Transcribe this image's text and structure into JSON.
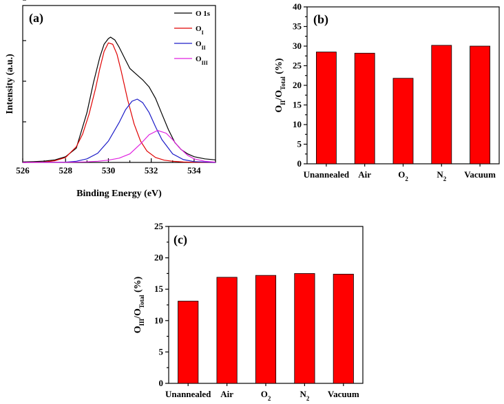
{
  "chart_data": [
    {
      "type": "line",
      "panel_label": "(a)",
      "xlabel": "Binding Energy (eV)",
      "ylabel": "Intensity (a.u.)",
      "xlim": [
        526,
        535
      ],
      "x_ticks": [
        526,
        528,
        530,
        532,
        534
      ],
      "y_ticks_labeled": false,
      "legend_placement": "top-right",
      "series": [
        {
          "name": "O 1s",
          "color": "#000000",
          "x": [
            526.0,
            526.5,
            527.0,
            527.5,
            528.0,
            528.5,
            529.0,
            529.3,
            529.6,
            529.8,
            530.0,
            530.1,
            530.3,
            530.5,
            530.8,
            531.0,
            531.3,
            531.6,
            531.9,
            532.2,
            532.5,
            532.8,
            533.1,
            533.4,
            533.7,
            534.0,
            534.5,
            535.0
          ],
          "y": [
            0.4,
            0.6,
            0.9,
            1.8,
            4.0,
            10.0,
            35.0,
            56.0,
            74.0,
            83.0,
            87.0,
            88.0,
            86.0,
            81.0,
            72.0,
            66.0,
            62.0,
            58.0,
            53.0,
            45.0,
            34.0,
            23.0,
            14.0,
            9.0,
            6.0,
            4.0,
            2.5,
            1.8
          ]
        },
        {
          "name": "O_I",
          "label_main": "O",
          "label_sub": "I",
          "color": "#e00000",
          "x": [
            526.0,
            527.0,
            527.5,
            528.0,
            528.5,
            528.8,
            529.1,
            529.4,
            529.6,
            529.8,
            530.0,
            530.2,
            530.4,
            530.6,
            530.9,
            531.2,
            531.5,
            531.8,
            532.2,
            532.6,
            533.0,
            533.5,
            534.0,
            535.0
          ],
          "y": [
            0.0,
            0.3,
            1.2,
            3.5,
            11.0,
            20.0,
            34.0,
            52.0,
            66.0,
            78.0,
            84.0,
            83.0,
            76.0,
            64.0,
            44.0,
            27.0,
            15.0,
            8.0,
            3.5,
            1.6,
            0.8,
            0.3,
            0.1,
            0.0
          ]
        },
        {
          "name": "O_II",
          "label_main": "O",
          "label_sub": "II",
          "color": "#1c1cc8",
          "x": [
            526.0,
            528.0,
            528.5,
            529.0,
            529.5,
            530.0,
            530.5,
            530.8,
            531.1,
            531.35,
            531.6,
            531.9,
            532.2,
            532.5,
            533.0,
            533.5,
            534.0,
            535.0
          ],
          "y": [
            0.0,
            0.2,
            0.8,
            2.5,
            6.5,
            15.0,
            28.0,
            37.0,
            43.0,
            44.5,
            42.0,
            35.0,
            25.0,
            16.0,
            6.0,
            2.0,
            0.6,
            0.0
          ]
        },
        {
          "name": "O_III",
          "label_main": "O",
          "label_sub": "III",
          "color": "#e020e0",
          "x": [
            526.0,
            528.0,
            529.0,
            529.5,
            530.0,
            530.5,
            531.0,
            531.5,
            531.9,
            532.3,
            532.7,
            533.0,
            533.3,
            533.7,
            534.0,
            534.5,
            535.0
          ],
          "y": [
            0.0,
            0.1,
            0.4,
            0.8,
            1.6,
            3.0,
            6.0,
            13.0,
            19.5,
            22.5,
            20.5,
            16.0,
            10.5,
            5.0,
            2.5,
            0.8,
            0.2
          ]
        }
      ]
    },
    {
      "type": "bar",
      "panel_label": "(b)",
      "ylabel_main": "O",
      "ylabel_sub1": "II",
      "ylabel_mid": "/O",
      "ylabel_sub2": "Total",
      "ylabel_unit": " (%)",
      "categories": [
        "Unannealed",
        "Air",
        "O",
        "N",
        "Vacuum"
      ],
      "category_subs": [
        "",
        "",
        "2",
        "2",
        ""
      ],
      "values": [
        28.5,
        28.2,
        21.8,
        30.2,
        30.0
      ],
      "ylim": [
        0,
        40
      ],
      "y_ticks": [
        0,
        5,
        10,
        15,
        20,
        25,
        30,
        35,
        40
      ],
      "bar_color": "#ff0000"
    },
    {
      "type": "bar",
      "panel_label": "(c)",
      "ylabel_main": "O",
      "ylabel_sub1": "III",
      "ylabel_mid": "/O",
      "ylabel_sub2": "Total",
      "ylabel_unit": " (%)",
      "categories": [
        "Unannealed",
        "Air",
        "O",
        "N",
        "Vacuum"
      ],
      "category_subs": [
        "",
        "",
        "2",
        "2",
        ""
      ],
      "values": [
        13.1,
        16.9,
        17.2,
        17.5,
        17.4
      ],
      "ylim": [
        0,
        25
      ],
      "y_ticks": [
        0,
        5,
        10,
        15,
        20,
        25
      ],
      "bar_color": "#ff0000"
    }
  ]
}
